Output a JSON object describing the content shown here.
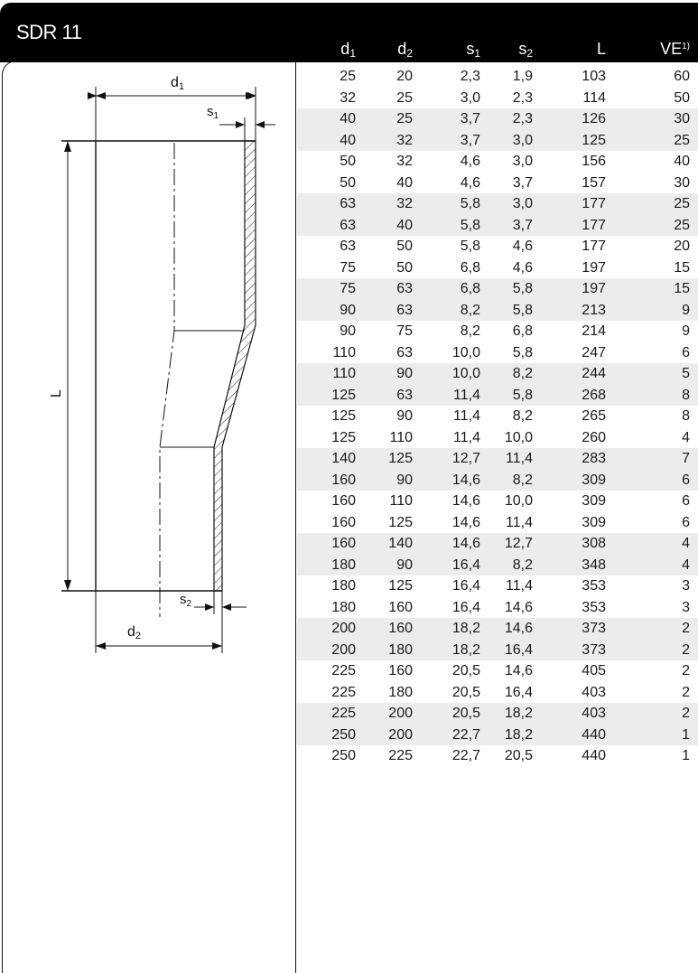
{
  "title": "SDR 11",
  "columns": [
    {
      "base": "d",
      "sub": "1",
      "sup": ""
    },
    {
      "base": "d",
      "sub": "2",
      "sup": ""
    },
    {
      "base": "s",
      "sub": "1",
      "sup": ""
    },
    {
      "base": "s",
      "sub": "2",
      "sup": ""
    },
    {
      "base": "L",
      "sub": "",
      "sup": ""
    },
    {
      "base": "VE",
      "sub": "",
      "sup": "1)"
    }
  ],
  "drawing_labels": {
    "d1": "d",
    "d1_sub": "1",
    "d2": "d",
    "d2_sub": "2",
    "s1": "s",
    "s1_sub": "1",
    "s2": "s",
    "s2_sub": "2",
    "L": "L"
  },
  "rows": [
    [
      "25",
      "20",
      "2,3",
      "1,9",
      "103",
      "60"
    ],
    [
      "32",
      "25",
      "3,0",
      "2,3",
      "114",
      "50"
    ],
    [
      "40",
      "25",
      "3,7",
      "2,3",
      "126",
      "30"
    ],
    [
      "40",
      "32",
      "3,7",
      "3,0",
      "125",
      "25"
    ],
    [
      "50",
      "32",
      "4,6",
      "3,0",
      "156",
      "40"
    ],
    [
      "50",
      "40",
      "4,6",
      "3,7",
      "157",
      "30"
    ],
    [
      "63",
      "32",
      "5,8",
      "3,0",
      "177",
      "25"
    ],
    [
      "63",
      "40",
      "5,8",
      "3,7",
      "177",
      "25"
    ],
    [
      "63",
      "50",
      "5,8",
      "4,6",
      "177",
      "20"
    ],
    [
      "75",
      "50",
      "6,8",
      "4,6",
      "197",
      "15"
    ],
    [
      "75",
      "63",
      "6,8",
      "5,8",
      "197",
      "15"
    ],
    [
      "90",
      "63",
      "8,2",
      "5,8",
      "213",
      "9"
    ],
    [
      "90",
      "75",
      "8,2",
      "6,8",
      "214",
      "9"
    ],
    [
      "110",
      "63",
      "10,0",
      "5,8",
      "247",
      "6"
    ],
    [
      "110",
      "90",
      "10,0",
      "8,2",
      "244",
      "5"
    ],
    [
      "125",
      "63",
      "11,4",
      "5,8",
      "268",
      "8"
    ],
    [
      "125",
      "90",
      "11,4",
      "8,2",
      "265",
      "8"
    ],
    [
      "125",
      "110",
      "11,4",
      "10,0",
      "260",
      "4"
    ],
    [
      "140",
      "125",
      "12,7",
      "11,4",
      "283",
      "7"
    ],
    [
      "160",
      "90",
      "14,6",
      "8,2",
      "309",
      "6"
    ],
    [
      "160",
      "110",
      "14,6",
      "10,0",
      "309",
      "6"
    ],
    [
      "160",
      "125",
      "14,6",
      "11,4",
      "309",
      "6"
    ],
    [
      "160",
      "140",
      "14,6",
      "12,7",
      "308",
      "4"
    ],
    [
      "180",
      "90",
      "16,4",
      "8,2",
      "348",
      "4"
    ],
    [
      "180",
      "125",
      "16,4",
      "11,4",
      "353",
      "3"
    ],
    [
      "180",
      "160",
      "16,4",
      "14,6",
      "353",
      "3"
    ],
    [
      "200",
      "160",
      "18,2",
      "14,6",
      "373",
      "2"
    ],
    [
      "200",
      "180",
      "18,2",
      "16,4",
      "373",
      "2"
    ],
    [
      "225",
      "160",
      "20,5",
      "14,6",
      "405",
      "2"
    ],
    [
      "225",
      "180",
      "20,5",
      "16,4",
      "403",
      "2"
    ],
    [
      "225",
      "200",
      "20,5",
      "18,2",
      "403",
      "2"
    ],
    [
      "250",
      "200",
      "22,7",
      "18,2",
      "440",
      "1"
    ],
    [
      "250",
      "225",
      "22,7",
      "20,5",
      "440",
      "1"
    ]
  ],
  "shaded_rows": [
    2,
    3,
    6,
    7,
    10,
    11,
    14,
    15,
    18,
    19,
    22,
    23,
    26,
    27,
    30,
    31
  ]
}
